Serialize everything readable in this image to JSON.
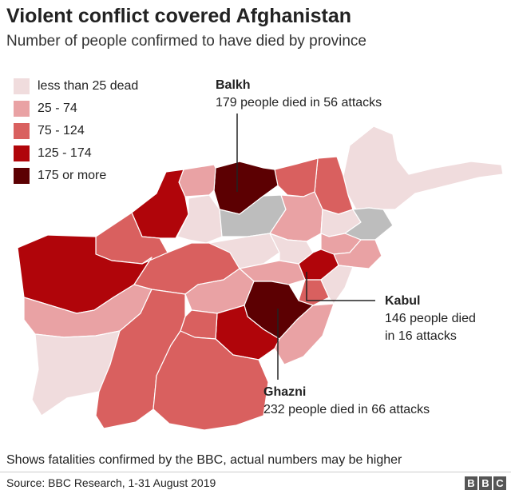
{
  "title": "Violent conflict covered Afghanistan",
  "subtitle": "Number of people confirmed to have died by province",
  "legend": [
    {
      "label": "less than 25 dead",
      "color": "#f0dcdd"
    },
    {
      "label": "25 - 74",
      "color": "#e9a2a4"
    },
    {
      "label": "75 - 124",
      "color": "#d9605f"
    },
    {
      "label": "125 - 174",
      "color": "#b0050a"
    },
    {
      "label": "175 or more",
      "color": "#5c0002"
    }
  ],
  "no_data_color": "#bdbdbd",
  "callouts": {
    "balkh": {
      "name": "Balkh",
      "text": "179 people died in 56 attacks"
    },
    "kabul": {
      "name": "Kabul",
      "line1": "146 people died",
      "line2": "in 16 attacks"
    },
    "ghazni": {
      "name": "Ghazni",
      "text": "232 people died in 66 attacks"
    }
  },
  "footnote": "Shows fatalities confirmed by the BBC, actual numbers may be higher",
  "source": "Source: BBC Research, 1-31 August 2019",
  "logo": [
    "B",
    "B",
    "C"
  ]
}
